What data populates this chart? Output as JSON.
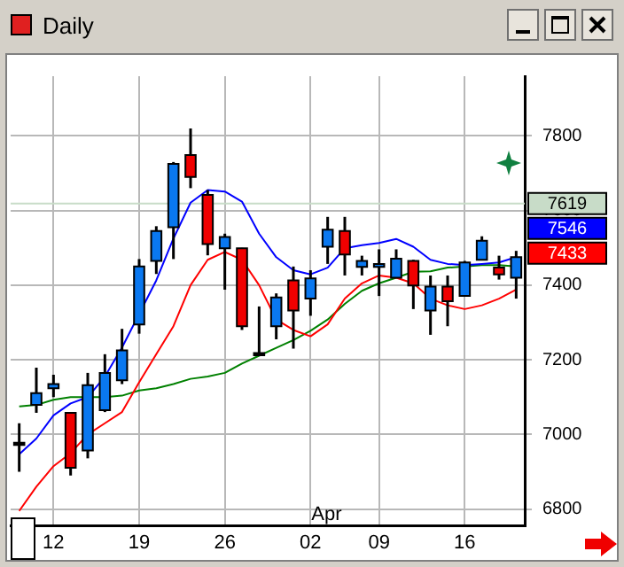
{
  "chart_data": {
    "type": "candlestick",
    "title": "Daily",
    "categories": [
      null,
      null,
      "12",
      null,
      null,
      null,
      null,
      "19",
      null,
      null,
      null,
      null,
      "26",
      null,
      null,
      null,
      null,
      "02",
      null,
      null,
      null,
      "09",
      null,
      null,
      null,
      null,
      "16",
      null,
      null,
      null
    ],
    "ohlc": [
      [
        6978,
        7030,
        6900,
        6972
      ],
      [
        7079,
        7179,
        7058,
        7111
      ],
      [
        7124,
        7160,
        7100,
        7135
      ],
      [
        7058,
        7060,
        6890,
        6911
      ],
      [
        6957,
        7165,
        6936,
        7132
      ],
      [
        7065,
        7215,
        7060,
        7165
      ],
      [
        7145,
        7283,
        7135,
        7225
      ],
      [
        7295,
        7470,
        7270,
        7450
      ],
      [
        7465,
        7558,
        7430,
        7545
      ],
      [
        7555,
        7730,
        7470,
        7725
      ],
      [
        7749,
        7820,
        7660,
        7690
      ],
      [
        7642,
        7655,
        7480,
        7510
      ],
      [
        7499,
        7538,
        7388,
        7529
      ],
      [
        7499,
        7500,
        7280,
        7290
      ],
      [
        7218,
        7343,
        7210,
        7212
      ],
      [
        7290,
        7378,
        7255,
        7367
      ],
      [
        7413,
        7450,
        7230,
        7332
      ],
      [
        7364,
        7440,
        7318,
        7418
      ],
      [
        7503,
        7583,
        7457,
        7549
      ],
      [
        7545,
        7583,
        7426,
        7482
      ],
      [
        7449,
        7479,
        7426,
        7465
      ],
      [
        7449,
        7496,
        7371,
        7457
      ],
      [
        7420,
        7496,
        7420,
        7471
      ],
      [
        7465,
        7468,
        7336,
        7399
      ],
      [
        7332,
        7426,
        7267,
        7396
      ],
      [
        7396,
        7426,
        7290,
        7357
      ],
      [
        7371,
        7465,
        7371,
        7461
      ],
      [
        7468,
        7531,
        7468,
        7519
      ],
      [
        7447,
        7479,
        7415,
        7429
      ],
      [
        7420,
        7492,
        7364,
        7475
      ]
    ],
    "colors": [
      "#000000",
      "#0a78f0",
      "#0a78f0",
      "#f00000",
      "#0a78f0",
      "#0a78f0",
      "#0a78f0",
      "#0a78f0",
      "#0a78f0",
      "#0a78f0",
      "#f00000",
      "#f00000",
      "#0a78f0",
      "#f00000",
      "#000000",
      "#0a78f0",
      "#f00000",
      "#0a78f0",
      "#0a78f0",
      "#f00000",
      "#0a78f0",
      "#0a78f0",
      "#0a78f0",
      "#f00000",
      "#0a78f0",
      "#f00000",
      "#0a78f0",
      "#0a78f0",
      "#f00000",
      "#0a78f0"
    ],
    "series": [
      {
        "type": "line",
        "color": "#0000ff",
        "values": [
          6947,
          6989,
          7051,
          7083,
          7100,
          7155,
          7233,
          null,
          7413,
          7525,
          7621,
          7655,
          7651,
          7624,
          7538,
          7475,
          7440,
          7429,
          7447,
          7499,
          7507,
          7513,
          7524,
          7503,
          7468,
          7457,
          7454,
          7457,
          7461,
          7475
        ]
      },
      {
        "type": "line",
        "color": "#ff0000",
        "values": [
          6795,
          6860,
          6915,
          6950,
          7000,
          7030,
          7060,
          7140,
          7215,
          7290,
          7400,
          7468,
          7489,
          7468,
          7400,
          7308,
          7280,
          7263,
          7295,
          7364,
          7405,
          7426,
          7420,
          7405,
          7364,
          7346,
          7336,
          7346,
          7364,
          7388
        ]
      },
      {
        "type": "line",
        "color": "#008000",
        "values": [
          7075,
          7079,
          7093,
          7100,
          7100,
          7100,
          7104,
          7118,
          7124,
          7135,
          7149,
          7155,
          7165,
          7190,
          7211,
          7232,
          7253,
          7278,
          7308,
          7350,
          7385,
          7405,
          7420,
          7436,
          7437,
          7447,
          7450,
          7454,
          7454,
          7450
        ]
      }
    ],
    "ylim": [
      6755,
      7960
    ],
    "yticks": [
      6800,
      7000,
      7200,
      7400,
      7600,
      7800
    ],
    "grid": true,
    "marker": "none",
    "ref_lines": [
      {
        "axis": "y",
        "value": 7619,
        "label": "7619",
        "color": "#c8dcc8"
      }
    ],
    "annotations": [
      "7546",
      "7433",
      "Apr"
    ]
  }
}
